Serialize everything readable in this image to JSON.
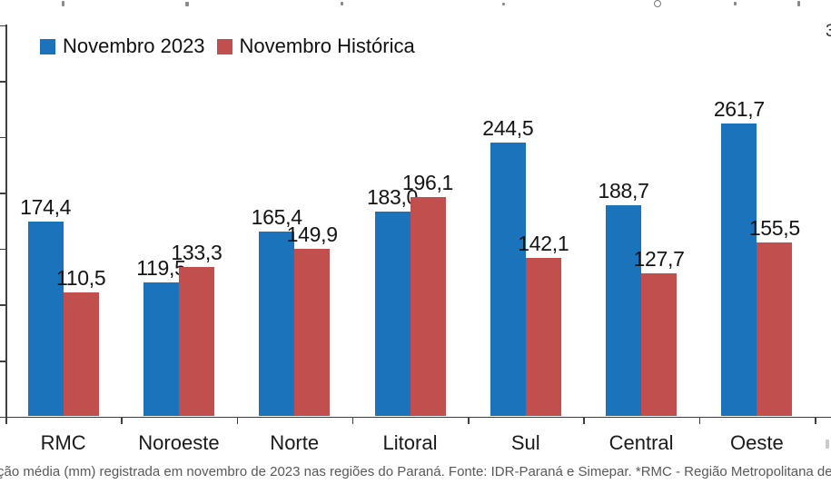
{
  "legend": [
    {
      "label": "Novembro 2023",
      "color": "#1b73bc"
    },
    {
      "label": "Novembro Histórica",
      "color": "#c14f4d"
    }
  ],
  "chart_data": {
    "type": "bar",
    "categories": [
      "RMC",
      "Noroeste",
      "Norte",
      "Litoral",
      "Sul",
      "Central",
      "Oeste"
    ],
    "series": [
      {
        "name": "Novembro 2023",
        "color": "#1b73bc",
        "values": [
          174.4,
          119.5,
          165.4,
          183.0,
          244.5,
          188.7,
          261.7
        ]
      },
      {
        "name": "Novembro Histórica",
        "color": "#c14f4d",
        "values": [
          110.5,
          133.3,
          149.9,
          196.1,
          142.1,
          127.7,
          155.5
        ]
      }
    ],
    "value_labels": {
      "decimal_separator": ",",
      "novembro_2023": [
        "174,4",
        "119,5",
        "165,4",
        "183,0",
        "244,5",
        "188,7",
        "261,7"
      ],
      "novembro_historica": [
        "110,5",
        "133,3",
        "149,9",
        "196,1",
        "142,1",
        "127,7",
        "155,5"
      ]
    },
    "title": "",
    "xlabel": "",
    "ylabel": "",
    "ylim": [
      0,
      350
    ],
    "y_tick_step": 50,
    "y_tick_labels_visible": false,
    "grid": false,
    "legend_position": "top-left",
    "axis_color": "#3f3f3f"
  },
  "clipped_right_text": "3",
  "caption": {
    "text": "ção média (mm) registrada em novembro de 2023 nas regiões do Paraná. Fonte: IDR-Paraná e Simepar. *RMC - Região Metropolitana de C"
  }
}
